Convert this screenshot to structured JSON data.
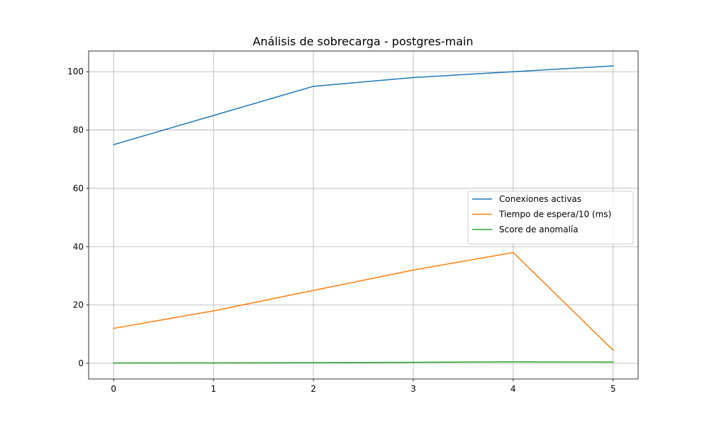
{
  "chart_data": {
    "type": "line",
    "title": "Análisis de sobrecarga - postgres-main",
    "xlabel": "",
    "ylabel": "",
    "x": [
      0,
      1,
      2,
      3,
      4,
      5
    ],
    "xlim": [
      -0.25,
      5.25
    ],
    "ylim": [
      -5.35,
      107.1
    ],
    "xticks": [
      0,
      1,
      2,
      3,
      4,
      5
    ],
    "yticks": [
      0,
      20,
      40,
      60,
      80,
      100
    ],
    "grid": true,
    "legend_position": "center-right",
    "series": [
      {
        "name": "Conexiones activas",
        "color": "#1f77b4",
        "values": [
          75,
          85,
          95,
          98,
          100,
          102
        ]
      },
      {
        "name": "Tiempo de espera/10 (ms)",
        "color": "#ff7f0e",
        "values": [
          12,
          18,
          25,
          32,
          38,
          4.5
        ]
      },
      {
        "name": "Score de anomalía",
        "color": "#2ca02c",
        "values": [
          0.1,
          0.15,
          0.25,
          0.35,
          0.5,
          0.45
        ]
      }
    ]
  }
}
